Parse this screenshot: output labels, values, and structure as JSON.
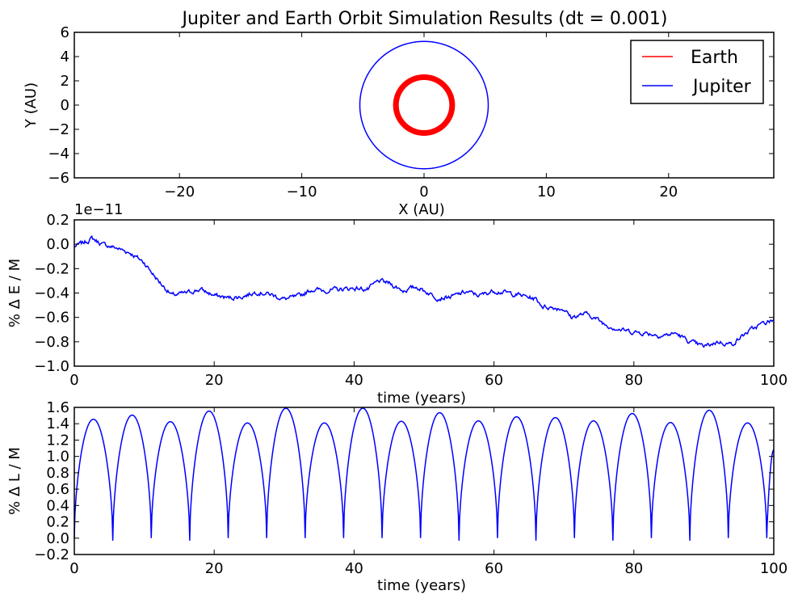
{
  "chart_data": [
    {
      "type": "line",
      "title": "Jupiter and Earth Orbit Simulation Results (dt = 0.001)",
      "xlabel": "X (AU)",
      "ylabel": "Y (AU)",
      "xlim": [
        -28.6,
        28.6
      ],
      "ylim": [
        -6,
        6
      ],
      "xticks": [
        "−20",
        "−10",
        "0",
        "10",
        "20"
      ],
      "yticks": [
        "−6",
        "−4",
        "−2",
        "0",
        "2",
        "4",
        "6"
      ],
      "grid": false,
      "legend_position": "top-right",
      "series": [
        {
          "name": "Earth",
          "color": "#ff0000",
          "shape": "orbit",
          "center": [
            0,
            0
          ],
          "radius_min": 2.1,
          "radius_max": 2.5
        },
        {
          "name": "Jupiter",
          "color": "#0000ff",
          "shape": "orbit",
          "center": [
            0,
            0
          ],
          "radius": 5.25
        }
      ]
    },
    {
      "type": "line",
      "xlabel": "time (years)",
      "ylabel": "% Δ E / M",
      "offset_label": "1e−11",
      "xlim": [
        0,
        100
      ],
      "ylim": [
        -1.0,
        0.2
      ],
      "xticks": [
        "0",
        "20",
        "40",
        "60",
        "80",
        "100"
      ],
      "yticks": [
        "−1.0",
        "−0.8",
        "−0.6",
        "−0.4",
        "−0.2",
        "0.0",
        "0.2"
      ],
      "grid": false,
      "series": [
        {
          "color": "#0000ff",
          "x": [
            0,
            2,
            2.5,
            4,
            6,
            8,
            10,
            12,
            14,
            16,
            18,
            20,
            22,
            24,
            26,
            28,
            30,
            32,
            34,
            36,
            38,
            40,
            42,
            43.5,
            45,
            47,
            49,
            50,
            52,
            54,
            56,
            58,
            60,
            62,
            64,
            66,
            67,
            70,
            71,
            73,
            74,
            76,
            78,
            80,
            82,
            84,
            86,
            88,
            90,
            92,
            94,
            96,
            98,
            100
          ],
          "y": [
            -0.02,
            0.03,
            0.05,
            0.0,
            -0.03,
            -0.07,
            -0.15,
            -0.3,
            -0.42,
            -0.4,
            -0.37,
            -0.42,
            -0.44,
            -0.43,
            -0.39,
            -0.41,
            -0.45,
            -0.43,
            -0.37,
            -0.38,
            -0.37,
            -0.36,
            -0.37,
            -0.3,
            -0.32,
            -0.38,
            -0.35,
            -0.38,
            -0.44,
            -0.43,
            -0.39,
            -0.42,
            -0.38,
            -0.4,
            -0.42,
            -0.45,
            -0.51,
            -0.53,
            -0.6,
            -0.57,
            -0.59,
            -0.66,
            -0.7,
            -0.72,
            -0.73,
            -0.75,
            -0.73,
            -0.8,
            -0.84,
            -0.8,
            -0.82,
            -0.73,
            -0.66,
            -0.62
          ]
        }
      ]
    },
    {
      "type": "line",
      "xlabel": "time (years)",
      "ylabel": "% Δ L / M",
      "xlim": [
        0,
        100
      ],
      "ylim": [
        -0.2,
        1.6
      ],
      "xticks": [
        "0",
        "20",
        "40",
        "60",
        "80",
        "100"
      ],
      "yticks": [
        "−0.2",
        "0.0",
        "0.2",
        "0.4",
        "0.6",
        "0.8",
        "1.0",
        "1.2",
        "1.4",
        "1.6"
      ],
      "grid": false,
      "series": [
        {
          "color": "#0000ff",
          "shape": "oscillation",
          "minima_t": [
            0,
            5.5,
            11,
            16.5,
            22,
            27.5,
            33,
            38.5,
            44,
            49.5,
            55,
            60.5,
            66,
            71.5,
            77,
            82.5,
            88,
            93.5,
            99
          ],
          "minima_v": [
            0.0,
            -0.03,
            0.0,
            -0.03,
            0.0,
            0.0,
            0.0,
            0.0,
            0.0,
            0.0,
            -0.03,
            0.0,
            -0.03,
            0.0,
            -0.03,
            0.0,
            -0.03,
            0.0,
            0.0
          ],
          "peaks_v": [
            1.47,
            1.52,
            1.44,
            1.57,
            1.41,
            1.59,
            1.41,
            1.59,
            1.43,
            1.55,
            1.45,
            1.5,
            1.49,
            1.45,
            1.54,
            1.43,
            1.58,
            1.41
          ],
          "end_value": 1.08
        }
      ]
    }
  ]
}
